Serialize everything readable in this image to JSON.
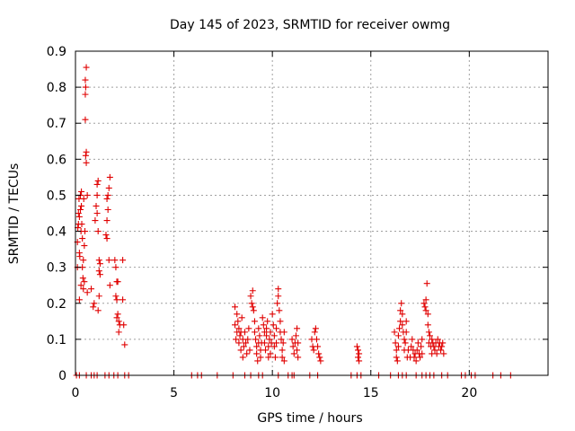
{
  "chart_data": {
    "type": "scatter",
    "title": "Day 145 of 2023, SRMTID for receiver owmg",
    "xlabel": "GPS time / hours",
    "ylabel": "SRMTID / TECUs",
    "xlim": [
      0,
      24
    ],
    "ylim": [
      0,
      0.9
    ],
    "xticks": [
      0,
      5,
      10,
      15,
      20
    ],
    "xtick_labels": [
      "0",
      "5",
      "10",
      "15",
      "20"
    ],
    "yticks": [
      0,
      0.1,
      0.2,
      0.3,
      0.4,
      0.5,
      0.6,
      0.7,
      0.8,
      0.9
    ],
    "ytick_labels": [
      "0",
      "0.1",
      "0.2",
      "0.3",
      "0.4",
      "0.5",
      "0.6",
      "0.7",
      "0.8",
      "0.9"
    ],
    "grid": true,
    "marker": "+",
    "color": "#e00000",
    "series": [
      {
        "name": "SRMTID",
        "points": [
          [
            0.05,
            0.0
          ],
          [
            0.2,
            0.0
          ],
          [
            0.55,
            0.0
          ],
          [
            0.8,
            0.0
          ],
          [
            0.95,
            0.0
          ],
          [
            1.1,
            0.0
          ],
          [
            1.5,
            0.0
          ],
          [
            1.7,
            0.0
          ],
          [
            1.95,
            0.0
          ],
          [
            2.15,
            0.0
          ],
          [
            2.5,
            0.0
          ],
          [
            2.7,
            0.0
          ],
          [
            5.9,
            0.0
          ],
          [
            6.2,
            0.0
          ],
          [
            6.4,
            0.0
          ],
          [
            7.2,
            0.0
          ],
          [
            8.0,
            0.0
          ],
          [
            8.6,
            0.0
          ],
          [
            8.9,
            0.0
          ],
          [
            9.3,
            0.0
          ],
          [
            9.5,
            0.0
          ],
          [
            10.3,
            0.0
          ],
          [
            10.8,
            0.0
          ],
          [
            11.0,
            0.0
          ],
          [
            11.1,
            0.0
          ],
          [
            11.9,
            0.0
          ],
          [
            12.3,
            0.0
          ],
          [
            14.0,
            0.0
          ],
          [
            14.3,
            0.0
          ],
          [
            14.5,
            0.0
          ],
          [
            15.4,
            0.0
          ],
          [
            16.0,
            0.0
          ],
          [
            16.4,
            0.0
          ],
          [
            16.6,
            0.0
          ],
          [
            16.8,
            0.0
          ],
          [
            17.3,
            0.0
          ],
          [
            17.6,
            0.0
          ],
          [
            17.8,
            0.0
          ],
          [
            18.0,
            0.0
          ],
          [
            18.2,
            0.0
          ],
          [
            18.6,
            0.0
          ],
          [
            18.9,
            0.0
          ],
          [
            19.6,
            0.0
          ],
          [
            19.8,
            0.0
          ],
          [
            20.1,
            0.0
          ],
          [
            20.3,
            0.0
          ],
          [
            21.2,
            0.0
          ],
          [
            21.6,
            0.0
          ],
          [
            22.1,
            0.0
          ],
          [
            0.1,
            0.3
          ],
          [
            0.1,
            0.37
          ],
          [
            0.12,
            0.41
          ],
          [
            0.15,
            0.42
          ],
          [
            0.15,
            0.45
          ],
          [
            0.18,
            0.49
          ],
          [
            0.2,
            0.44
          ],
          [
            0.2,
            0.34
          ],
          [
            0.22,
            0.33
          ],
          [
            0.25,
            0.46
          ],
          [
            0.25,
            0.5
          ],
          [
            0.28,
            0.4
          ],
          [
            0.3,
            0.47
          ],
          [
            0.3,
            0.51
          ],
          [
            0.32,
            0.42
          ],
          [
            0.35,
            0.38
          ],
          [
            0.35,
            0.3
          ],
          [
            0.38,
            0.27
          ],
          [
            0.4,
            0.24
          ],
          [
            0.4,
            0.32
          ],
          [
            0.42,
            0.49
          ],
          [
            0.45,
            0.36
          ],
          [
            0.45,
            0.26
          ],
          [
            0.48,
            0.4
          ],
          [
            0.2,
            0.21
          ],
          [
            0.28,
            0.25
          ],
          [
            0.5,
            0.71
          ],
          [
            0.52,
            0.61
          ],
          [
            0.55,
            0.62
          ],
          [
            0.55,
            0.59
          ],
          [
            0.5,
            0.78
          ],
          [
            0.52,
            0.8
          ],
          [
            0.5,
            0.82
          ],
          [
            0.55,
            0.855
          ],
          [
            0.6,
            0.5
          ],
          [
            0.6,
            0.23
          ],
          [
            0.9,
            0.19
          ],
          [
            0.8,
            0.24
          ],
          [
            0.95,
            0.2
          ],
          [
            1.0,
            0.43
          ],
          [
            1.05,
            0.47
          ],
          [
            1.1,
            0.5
          ],
          [
            1.1,
            0.53
          ],
          [
            1.15,
            0.54
          ],
          [
            1.1,
            0.45
          ],
          [
            1.15,
            0.4
          ],
          [
            1.2,
            0.32
          ],
          [
            1.2,
            0.29
          ],
          [
            1.25,
            0.28
          ],
          [
            1.25,
            0.31
          ],
          [
            1.2,
            0.22
          ],
          [
            1.15,
            0.18
          ],
          [
            1.55,
            0.39
          ],
          [
            1.6,
            0.38
          ],
          [
            1.6,
            0.43
          ],
          [
            1.65,
            0.46
          ],
          [
            1.65,
            0.5
          ],
          [
            1.7,
            0.52
          ],
          [
            1.75,
            0.55
          ],
          [
            1.6,
            0.49
          ],
          [
            1.7,
            0.32
          ],
          [
            1.75,
            0.25
          ],
          [
            2.0,
            0.32
          ],
          [
            2.05,
            0.3
          ],
          [
            2.1,
            0.26
          ],
          [
            2.15,
            0.26
          ],
          [
            2.1,
            0.21
          ],
          [
            2.15,
            0.17
          ],
          [
            2.2,
            0.15
          ],
          [
            2.2,
            0.12
          ],
          [
            2.25,
            0.14
          ],
          [
            2.05,
            0.22
          ],
          [
            2.1,
            0.16
          ],
          [
            2.4,
            0.32
          ],
          [
            2.4,
            0.21
          ],
          [
            2.45,
            0.14
          ],
          [
            2.5,
            0.085
          ],
          [
            8.1,
            0.19
          ],
          [
            8.1,
            0.14
          ],
          [
            8.15,
            0.1
          ],
          [
            8.2,
            0.12
          ],
          [
            8.2,
            0.17
          ],
          [
            8.25,
            0.15
          ],
          [
            8.3,
            0.13
          ],
          [
            8.3,
            0.09
          ],
          [
            8.35,
            0.11
          ],
          [
            8.4,
            0.07
          ],
          [
            8.4,
            0.12
          ],
          [
            8.45,
            0.16
          ],
          [
            8.5,
            0.1
          ],
          [
            8.5,
            0.05
          ],
          [
            8.55,
            0.08
          ],
          [
            8.6,
            0.12
          ],
          [
            8.65,
            0.09
          ],
          [
            8.7,
            0.06
          ],
          [
            8.75,
            0.1
          ],
          [
            8.8,
            0.13
          ],
          [
            8.85,
            0.07
          ],
          [
            8.9,
            0.22
          ],
          [
            8.95,
            0.2
          ],
          [
            9.0,
            0.19
          ],
          [
            9.0,
            0.235
          ],
          [
            9.05,
            0.18
          ],
          [
            9.1,
            0.15
          ],
          [
            9.1,
            0.12
          ],
          [
            9.15,
            0.1
          ],
          [
            9.2,
            0.08
          ],
          [
            9.2,
            0.06
          ],
          [
            9.25,
            0.04
          ],
          [
            9.3,
            0.09
          ],
          [
            9.3,
            0.13
          ],
          [
            9.35,
            0.11
          ],
          [
            9.4,
            0.07
          ],
          [
            9.4,
            0.05
          ],
          [
            9.45,
            0.09
          ],
          [
            9.5,
            0.16
          ],
          [
            9.55,
            0.14
          ],
          [
            9.6,
            0.12
          ],
          [
            9.6,
            0.09
          ],
          [
            9.65,
            0.07
          ],
          [
            9.7,
            0.11
          ],
          [
            9.7,
            0.13
          ],
          [
            9.75,
            0.15
          ],
          [
            9.8,
            0.08
          ],
          [
            9.8,
            0.05
          ],
          [
            9.85,
            0.1
          ],
          [
            9.9,
            0.12
          ],
          [
            9.9,
            0.06
          ],
          [
            9.95,
            0.09
          ],
          [
            10.0,
            0.17
          ],
          [
            10.05,
            0.14
          ],
          [
            10.1,
            0.11
          ],
          [
            10.1,
            0.08
          ],
          [
            10.15,
            0.05
          ],
          [
            10.2,
            0.09
          ],
          [
            10.2,
            0.13
          ],
          [
            10.25,
            0.2
          ],
          [
            10.3,
            0.22
          ],
          [
            10.3,
            0.24
          ],
          [
            10.35,
            0.18
          ],
          [
            10.4,
            0.15
          ],
          [
            10.4,
            0.12
          ],
          [
            10.45,
            0.1
          ],
          [
            10.5,
            0.07
          ],
          [
            10.5,
            0.05
          ],
          [
            10.55,
            0.09
          ],
          [
            10.6,
            0.12
          ],
          [
            10.6,
            0.04
          ],
          [
            11.0,
            0.1
          ],
          [
            11.05,
            0.08
          ],
          [
            11.1,
            0.06
          ],
          [
            11.15,
            0.09
          ],
          [
            11.2,
            0.11
          ],
          [
            11.25,
            0.13
          ],
          [
            11.25,
            0.07
          ],
          [
            11.3,
            0.05
          ],
          [
            11.3,
            0.09
          ],
          [
            12.0,
            0.1
          ],
          [
            12.05,
            0.08
          ],
          [
            12.1,
            0.07
          ],
          [
            12.15,
            0.12
          ],
          [
            12.2,
            0.13
          ],
          [
            12.25,
            0.1
          ],
          [
            12.3,
            0.08
          ],
          [
            12.35,
            0.06
          ],
          [
            12.4,
            0.05
          ],
          [
            12.45,
            0.04
          ],
          [
            14.3,
            0.08
          ],
          [
            14.35,
            0.07
          ],
          [
            14.4,
            0.06
          ],
          [
            14.4,
            0.04
          ],
          [
            14.35,
            0.05
          ],
          [
            16.2,
            0.12
          ],
          [
            16.25,
            0.09
          ],
          [
            16.3,
            0.07
          ],
          [
            16.3,
            0.05
          ],
          [
            16.35,
            0.04
          ],
          [
            16.4,
            0.08
          ],
          [
            16.4,
            0.11
          ],
          [
            16.45,
            0.13
          ],
          [
            16.5,
            0.15
          ],
          [
            16.5,
            0.18
          ],
          [
            16.55,
            0.2
          ],
          [
            16.6,
            0.17
          ],
          [
            16.6,
            0.14
          ],
          [
            16.65,
            0.12
          ],
          [
            16.7,
            0.1
          ],
          [
            16.7,
            0.07
          ],
          [
            16.75,
            0.09
          ],
          [
            16.8,
            0.12
          ],
          [
            16.8,
            0.15
          ],
          [
            16.85,
            0.05
          ],
          [
            16.9,
            0.07
          ],
          [
            17.0,
            0.05
          ],
          [
            17.05,
            0.08
          ],
          [
            17.1,
            0.1
          ],
          [
            17.15,
            0.07
          ],
          [
            17.2,
            0.05
          ],
          [
            17.25,
            0.06
          ],
          [
            17.3,
            0.04
          ],
          [
            17.35,
            0.07
          ],
          [
            17.4,
            0.09
          ],
          [
            17.45,
            0.06
          ],
          [
            17.5,
            0.05
          ],
          [
            17.55,
            0.08
          ],
          [
            17.6,
            0.1
          ],
          [
            17.6,
            0.06
          ],
          [
            17.7,
            0.2
          ],
          [
            17.75,
            0.19
          ],
          [
            17.8,
            0.21
          ],
          [
            17.8,
            0.18
          ],
          [
            17.85,
            0.255
          ],
          [
            17.9,
            0.17
          ],
          [
            17.9,
            0.14
          ],
          [
            17.95,
            0.12
          ],
          [
            17.95,
            0.09
          ],
          [
            18.0,
            0.11
          ],
          [
            18.05,
            0.08
          ],
          [
            18.1,
            0.06
          ],
          [
            18.1,
            0.1
          ],
          [
            18.15,
            0.09
          ],
          [
            18.2,
            0.08
          ],
          [
            18.25,
            0.07
          ],
          [
            18.3,
            0.09
          ],
          [
            18.35,
            0.06
          ],
          [
            18.4,
            0.1
          ],
          [
            18.45,
            0.08
          ],
          [
            18.5,
            0.09
          ],
          [
            18.55,
            0.07
          ],
          [
            18.6,
            0.08
          ],
          [
            18.65,
            0.09
          ],
          [
            18.7,
            0.06
          ]
        ]
      }
    ]
  }
}
